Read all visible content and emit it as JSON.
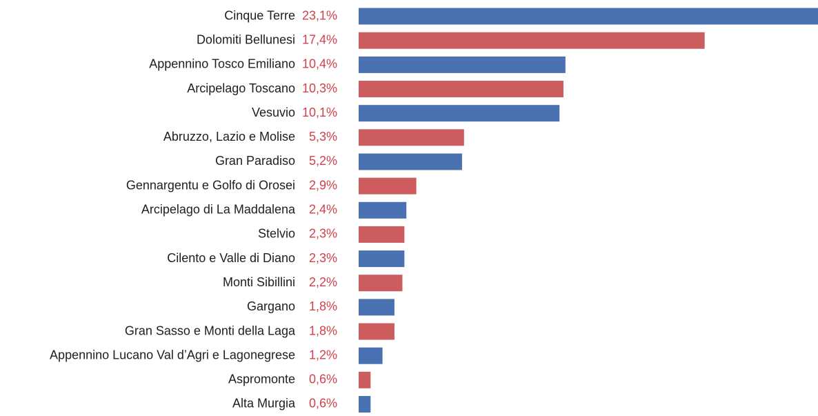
{
  "chart_data": {
    "type": "bar",
    "orientation": "horizontal",
    "categories": [
      "Cinque Terre",
      "Dolomiti Bellunesi",
      "Appennino Tosco Emiliano",
      "Arcipelago Toscano",
      "Vesuvio",
      "Abruzzo, Lazio e Molise",
      "Gran Paradiso",
      "Gennargentu e Golfo di Orosei",
      "Arcipelago di La Maddalena",
      "Stelvio",
      "Cilento e Valle di Diano",
      "Monti Sibillini",
      "Gargano",
      "Gran Sasso e Monti della Laga",
      "Appennino Lucano Val d’Agri e Lagonegrese",
      "Aspromonte",
      "Alta Murgia"
    ],
    "values": [
      23.1,
      17.4,
      10.4,
      10.3,
      10.1,
      5.3,
      5.2,
      2.9,
      2.4,
      2.3,
      2.3,
      2.2,
      1.8,
      1.8,
      1.2,
      0.6,
      0.6
    ],
    "value_labels": [
      "23,1%",
      "17,4%",
      "10,4%",
      "10,3%",
      "10,1%",
      "5,3%",
      "5,2%",
      "2,9%",
      "2,4%",
      "2,3%",
      "2,3%",
      "2,2%",
      "1,8%",
      "1,8%",
      "1,2%",
      "0,6%",
      "0,6%"
    ],
    "colors": [
      "#4a72b2",
      "#cc5c5e"
    ]
  }
}
